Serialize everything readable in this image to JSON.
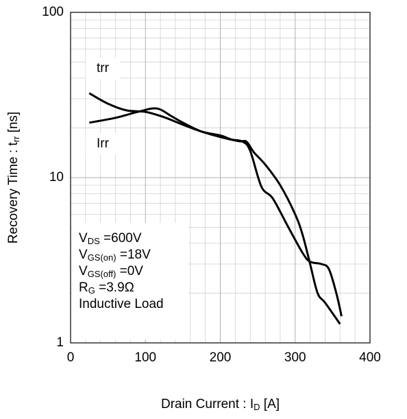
{
  "chart_data": {
    "type": "line",
    "xlabel": {
      "text": "Drain Current : I",
      "sub": "D",
      "rest": "  [A]"
    },
    "ylabel": {
      "text": "Recovery Time : t",
      "sub": "rr",
      "rest": "  [ns]"
    },
    "xlim": [
      0,
      400
    ],
    "xticks": [
      0,
      100,
      200,
      300,
      400
    ],
    "xminorticks": [
      20,
      40,
      60,
      80,
      120,
      140,
      160,
      180,
      220,
      240,
      260,
      280,
      320,
      340,
      360,
      380
    ],
    "ylim": [
      1,
      100
    ],
    "yticks": [
      1,
      10,
      100
    ],
    "log_y": true,
    "yminorticks": [
      2,
      3,
      4,
      5,
      6,
      7,
      8,
      9,
      20,
      30,
      40,
      50,
      60,
      70,
      80,
      90
    ],
    "grid": true,
    "series": [
      {
        "name": "trr",
        "color": "#000000",
        "x": [
          25,
          50,
          75,
          100,
          125,
          150,
          175,
          200,
          225,
          235,
          245,
          260,
          280,
          300,
          310,
          320,
          330,
          340,
          360
        ],
        "values": [
          32.4,
          28,
          25.5,
          25,
          23.2,
          20.9,
          19,
          17.6,
          16.6,
          16.5,
          14.2,
          12,
          9,
          6,
          4.5,
          3,
          2,
          1.75,
          1.3
        ]
      },
      {
        "name": "Irr",
        "color": "#000000",
        "x": [
          25,
          60,
          90,
          115,
          135,
          150,
          175,
          200,
          215,
          230,
          240,
          255,
          270,
          290,
          310,
          320,
          335,
          345,
          355,
          362
        ],
        "values": [
          21.5,
          23,
          25,
          26.2,
          23.5,
          21.5,
          19,
          18,
          17,
          16.5,
          14.5,
          8.8,
          7.5,
          5.1,
          3.5,
          3.1,
          3,
          2.8,
          2,
          1.45
        ]
      }
    ],
    "annotations": [
      {
        "text": "V",
        "sub": "DS",
        "rest": " =600V"
      },
      {
        "text": "V",
        "sub": "GS(on)",
        "rest": " =18V"
      },
      {
        "text": "V",
        "sub": "GS(off)",
        "rest": " =0V"
      },
      {
        "text": "R",
        "sub": "G",
        "rest": " =3.9Ω"
      },
      {
        "text": "Inductive Load"
      }
    ]
  }
}
